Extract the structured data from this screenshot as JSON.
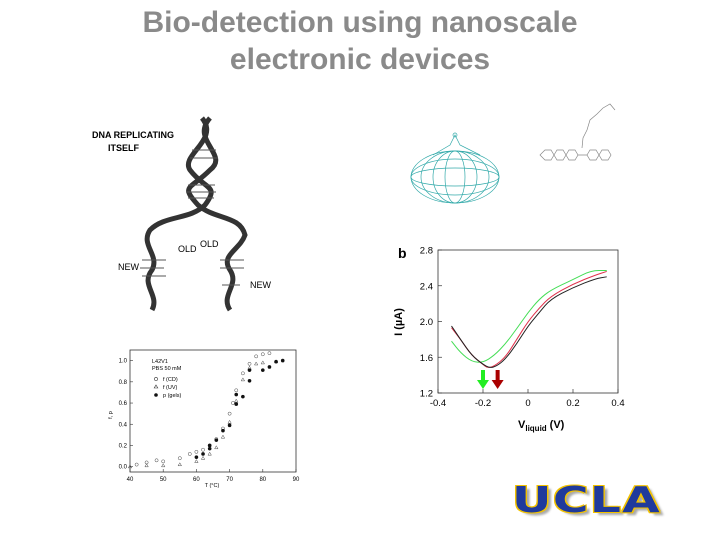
{
  "slide": {
    "title_line1": "Bio-detection using nanoscale",
    "title_line2": "electronic devices",
    "logo_text": "UCLA"
  },
  "dna_figure": {
    "caption_line1": "DNA REPLICATING",
    "caption_line2": "ITSELF",
    "labels": {
      "old_left": "OLD",
      "old_right": "OLD",
      "new_left": "NEW",
      "new_right": "NEW"
    }
  },
  "chart_data": [
    {
      "type": "scatter",
      "title": "",
      "annotation_line1": "L42V1",
      "annotation_line2": "PBS 50 mM",
      "xlabel": "T (°C)",
      "ylabel": "f, p",
      "xlim": [
        40,
        90
      ],
      "ylim": [
        -0.05,
        1.1
      ],
      "xticks": [
        "40",
        "50",
        "60",
        "70",
        "80",
        "90"
      ],
      "yticks": [
        "0.0",
        "0.2",
        "0.4",
        "0.6",
        "0.8",
        "1.0"
      ],
      "legend": "top-left",
      "series": [
        {
          "name": "f (CD)",
          "marker": "circle-open",
          "points": [
            [
              42,
              0.02
            ],
            [
              45,
              0.04
            ],
            [
              48,
              0.06
            ],
            [
              50,
              0.05
            ],
            [
              55,
              0.08
            ],
            [
              58,
              0.12
            ],
            [
              60,
              0.14
            ],
            [
              62,
              0.16
            ],
            [
              64,
              0.2
            ],
            [
              66,
              0.26
            ],
            [
              68,
              0.36
            ],
            [
              70,
              0.5
            ],
            [
              71,
              0.6
            ],
            [
              72,
              0.72
            ],
            [
              74,
              0.88
            ],
            [
              76,
              0.97
            ],
            [
              78,
              1.04
            ],
            [
              80,
              1.06
            ],
            [
              82,
              1.07
            ]
          ]
        },
        {
          "name": "f (UV)",
          "marker": "triangle-open",
          "points": [
            [
              40,
              0.0
            ],
            [
              45,
              0.01
            ],
            [
              50,
              0.01
            ],
            [
              55,
              0.02
            ],
            [
              60,
              0.05
            ],
            [
              62,
              0.08
            ],
            [
              64,
              0.12
            ],
            [
              66,
              0.18
            ],
            [
              68,
              0.28
            ],
            [
              70,
              0.42
            ],
            [
              72,
              0.62
            ],
            [
              74,
              0.82
            ],
            [
              76,
              0.93
            ],
            [
              78,
              0.97
            ],
            [
              80,
              0.98
            ],
            [
              84,
              0.99
            ]
          ]
        },
        {
          "name": "p (gels)",
          "marker": "circle-filled",
          "points": [
            [
              60,
              0.09
            ],
            [
              62,
              0.12
            ],
            [
              64,
              0.17
            ],
            [
              64,
              0.2
            ],
            [
              66,
              0.25
            ],
            [
              68,
              0.34
            ],
            [
              70,
              0.39
            ],
            [
              72,
              0.59
            ],
            [
              72,
              0.68
            ],
            [
              74,
              0.66
            ],
            [
              76,
              0.91
            ],
            [
              76,
              0.81
            ],
            [
              80,
              0.91
            ],
            [
              82,
              0.94
            ],
            [
              84,
              0.99
            ],
            [
              86,
              1.0
            ]
          ]
        }
      ]
    },
    {
      "type": "line",
      "panel_label": "b",
      "xlabel": "V",
      "xlabel_sub": "liquid",
      "xlabel_unit": "(V)",
      "ylabel": "I (µA)",
      "xlim": [
        -0.4,
        0.4
      ],
      "ylim": [
        1.2,
        2.8
      ],
      "xticks": [
        "-0.4",
        "-0.2",
        "0",
        "0.2",
        "0.4"
      ],
      "yticks": [
        "1.2",
        "1.6",
        "2.0",
        "2.4",
        "2.8"
      ],
      "series": [
        {
          "name": "black",
          "color": "#222222",
          "points": [
            [
              -0.34,
              1.95
            ],
            [
              -0.3,
              1.8
            ],
            [
              -0.25,
              1.62
            ],
            [
              -0.2,
              1.52
            ],
            [
              -0.17,
              1.48
            ],
            [
              -0.14,
              1.5
            ],
            [
              -0.1,
              1.58
            ],
            [
              -0.05,
              1.75
            ],
            [
              0,
              1.95
            ],
            [
              0.05,
              2.1
            ],
            [
              0.1,
              2.25
            ],
            [
              0.2,
              2.38
            ],
            [
              0.3,
              2.48
            ],
            [
              0.35,
              2.5
            ]
          ]
        },
        {
          "name": "red",
          "color": "#e0304a",
          "points": [
            [
              -0.34,
              1.93
            ],
            [
              -0.3,
              1.8
            ],
            [
              -0.25,
              1.62
            ],
            [
              -0.2,
              1.52
            ],
            [
              -0.18,
              1.48
            ],
            [
              -0.15,
              1.5
            ],
            [
              -0.1,
              1.6
            ],
            [
              -0.05,
              1.8
            ],
            [
              0,
              2.0
            ],
            [
              0.05,
              2.15
            ],
            [
              0.1,
              2.28
            ],
            [
              0.2,
              2.42
            ],
            [
              0.3,
              2.52
            ],
            [
              0.35,
              2.56
            ]
          ]
        },
        {
          "name": "green",
          "color": "#44dd55",
          "points": [
            [
              -0.34,
              1.78
            ],
            [
              -0.3,
              1.65
            ],
            [
              -0.25,
              1.55
            ],
            [
              -0.2,
              1.54
            ],
            [
              -0.15,
              1.62
            ],
            [
              -0.1,
              1.75
            ],
            [
              -0.05,
              1.92
            ],
            [
              0,
              2.1
            ],
            [
              0.05,
              2.25
            ],
            [
              0.1,
              2.35
            ],
            [
              0.2,
              2.47
            ],
            [
              0.28,
              2.57
            ],
            [
              0.35,
              2.57
            ]
          ]
        }
      ],
      "arrows": [
        {
          "x": -0.2,
          "color": "#22ee22"
        },
        {
          "x": -0.135,
          "color": "#aa0000"
        }
      ]
    }
  ],
  "colors": {
    "title": "#8a8a8a",
    "ucla_blue": "#1f3a9c",
    "ucla_gold": "#f2c200",
    "nanotube": "#33aaaa"
  }
}
